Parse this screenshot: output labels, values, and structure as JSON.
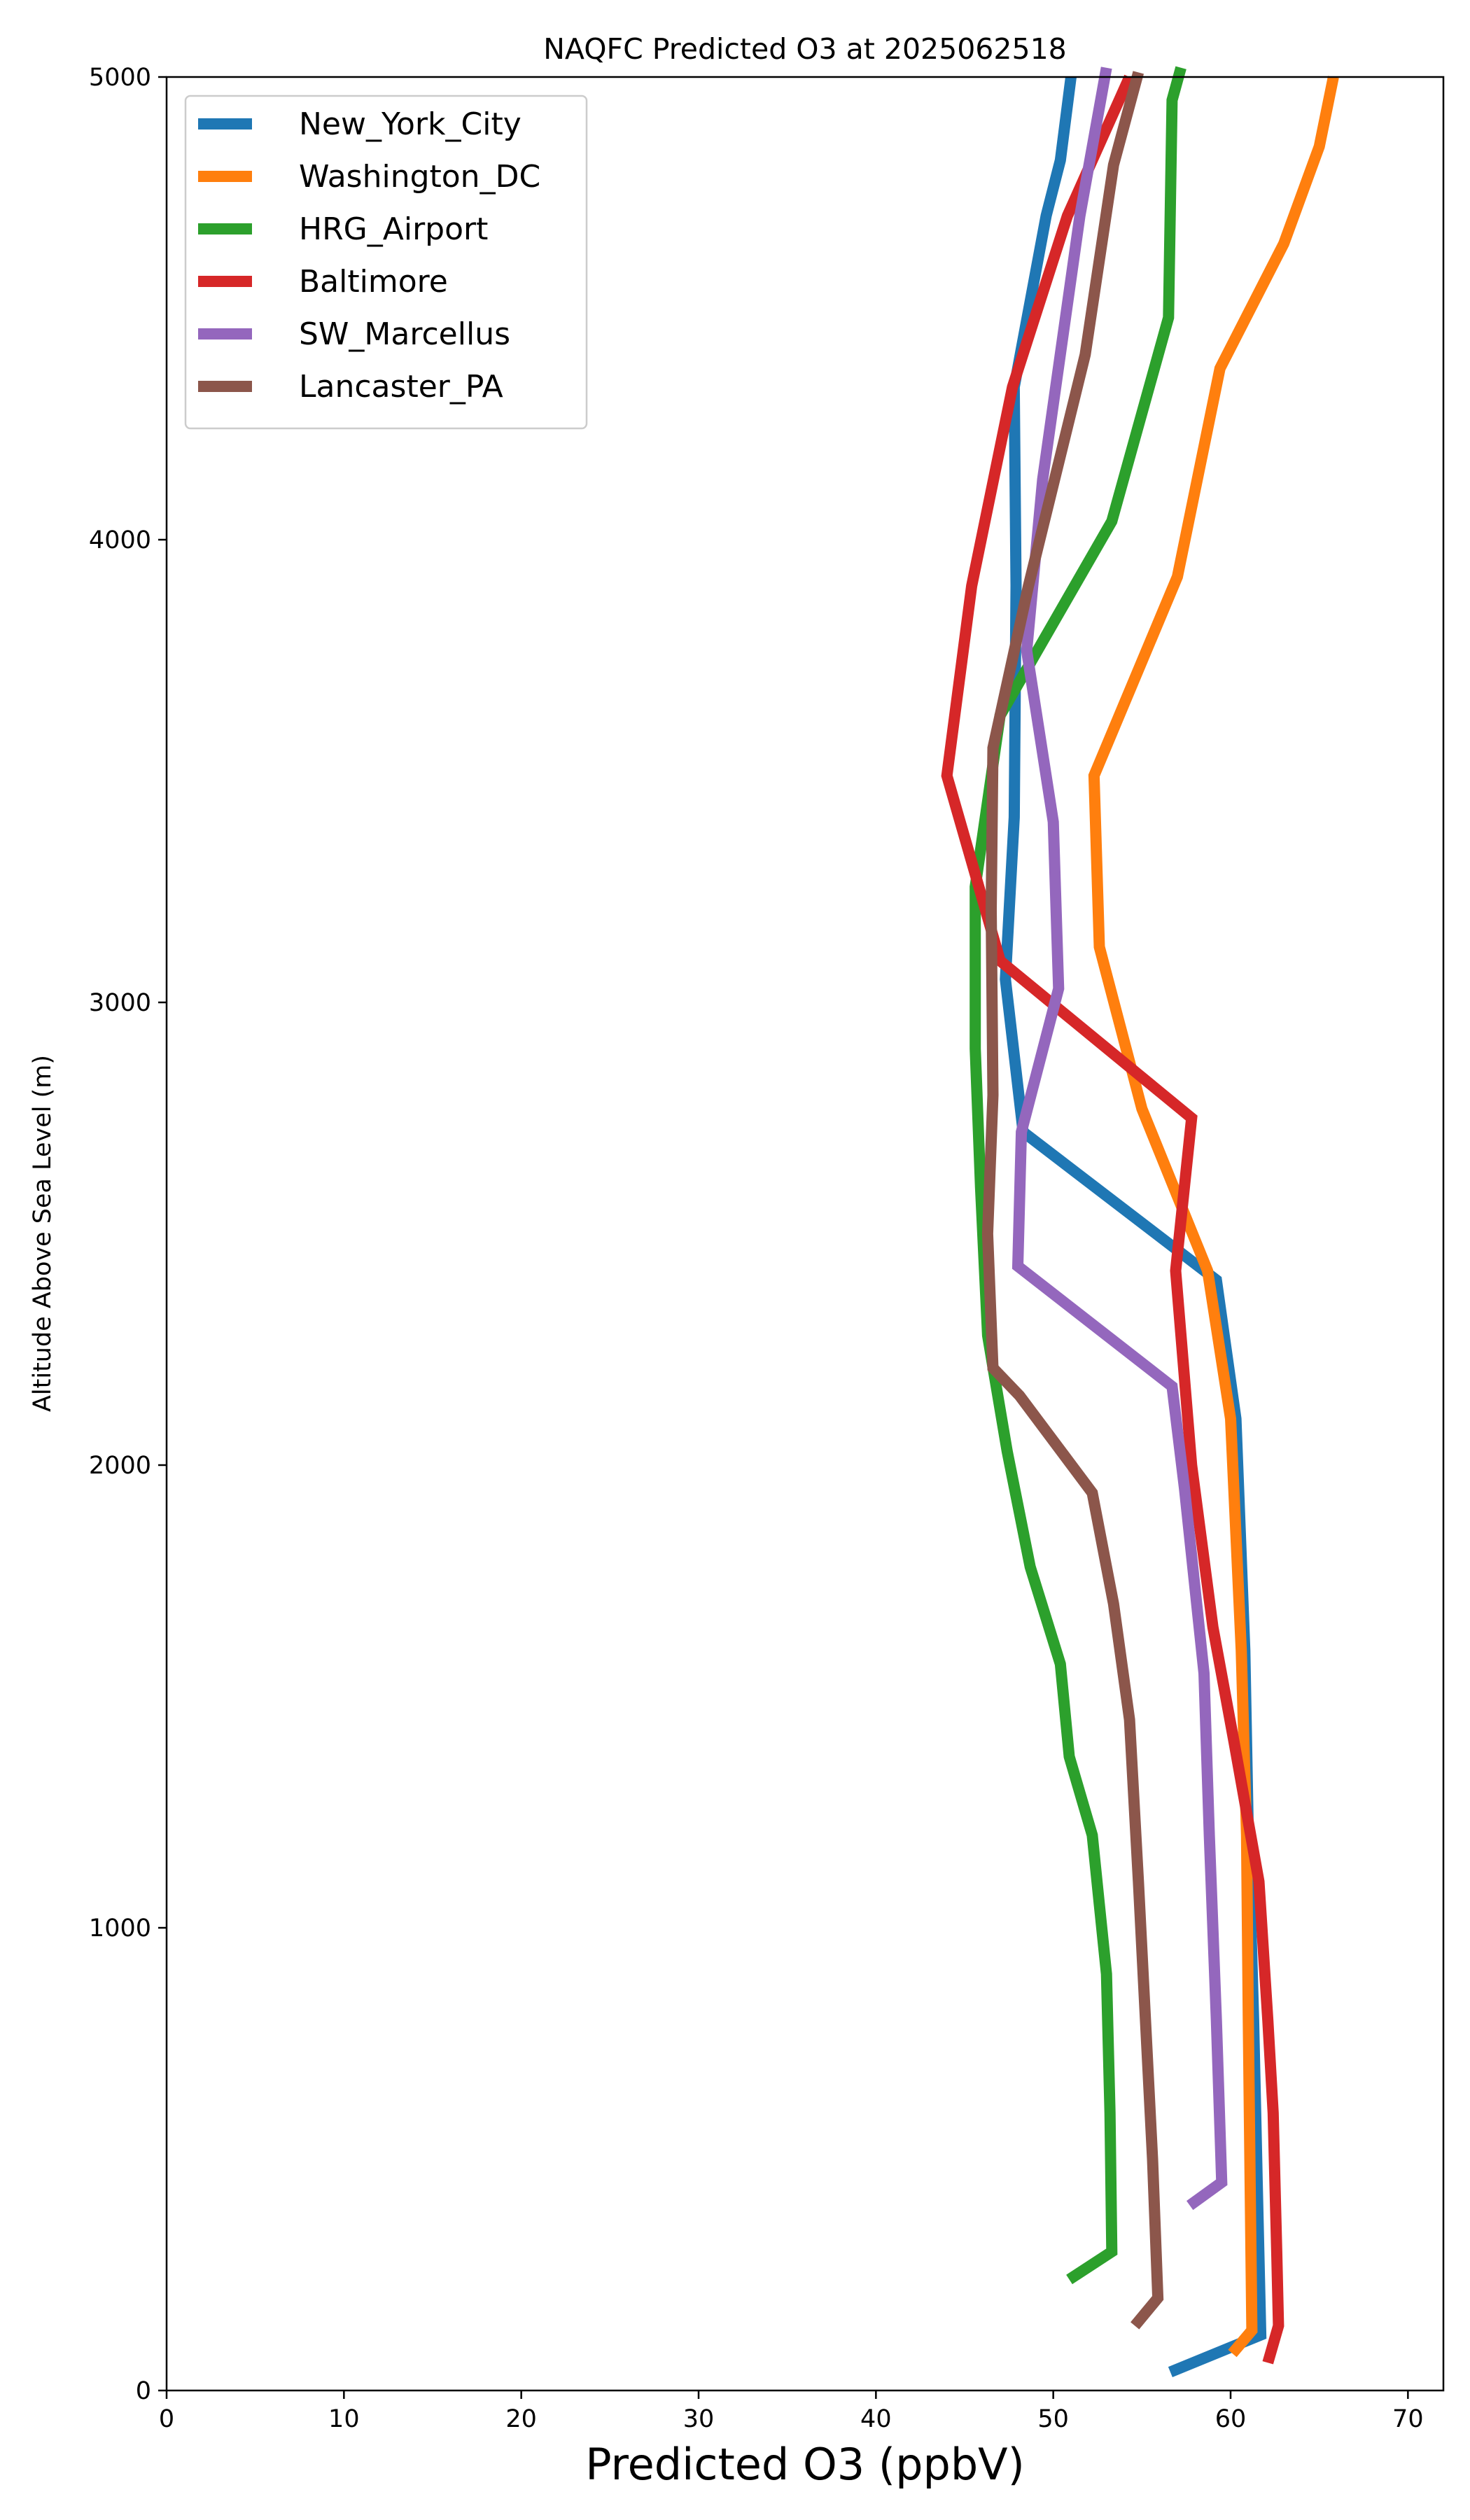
{
  "chart_data": {
    "type": "line",
    "title": "NAQFC Predicted O3 at 2025062518",
    "xlabel": "Predicted O3 (ppbV)",
    "ylabel": "Altitude Above Sea Level (m)",
    "xlim": [
      0,
      72
    ],
    "ylim": [
      0,
      5000
    ],
    "xticks": [
      0,
      10,
      20,
      30,
      40,
      50,
      60,
      70
    ],
    "yticks": [
      0,
      1000,
      2000,
      3000,
      4000,
      5000
    ],
    "legend": "upper-left",
    "grid": false,
    "series": [
      {
        "name": "New_York_City",
        "color": "#1f77b4",
        "points": [
          [
            56.6,
            40
          ],
          [
            61.7,
            120
          ],
          [
            61.5,
            450
          ],
          [
            61.3,
            800
          ],
          [
            61.0,
            1200
          ],
          [
            60.8,
            1600
          ],
          [
            60.3,
            2100
          ],
          [
            59.2,
            2400
          ],
          [
            48.3,
            2720
          ],
          [
            47.3,
            3050
          ],
          [
            47.8,
            3400
          ],
          [
            47.9,
            3900
          ],
          [
            47.8,
            4330
          ],
          [
            49.6,
            4700
          ],
          [
            50.4,
            4820
          ],
          [
            51.0,
            5000
          ]
        ]
      },
      {
        "name": "Washington_DC",
        "color": "#ff7f0e",
        "points": [
          [
            60.1,
            80
          ],
          [
            61.2,
            130
          ],
          [
            61.1,
            450
          ],
          [
            61.0,
            800
          ],
          [
            60.9,
            1200
          ],
          [
            60.6,
            1600
          ],
          [
            60.0,
            2100
          ],
          [
            58.7,
            2420
          ],
          [
            55.0,
            2770
          ],
          [
            52.6,
            3120
          ],
          [
            52.3,
            3490
          ],
          [
            57.0,
            3920
          ],
          [
            59.4,
            4370
          ],
          [
            63.0,
            4640
          ],
          [
            65.0,
            4850
          ],
          [
            65.8,
            5000
          ]
        ]
      },
      {
        "name": "HRG_Airport",
        "color": "#2ca02c",
        "points": [
          [
            50.9,
            240
          ],
          [
            53.3,
            300
          ],
          [
            53.2,
            600
          ],
          [
            53.0,
            900
          ],
          [
            52.6,
            1050
          ],
          [
            52.2,
            1200
          ],
          [
            50.9,
            1370
          ],
          [
            50.4,
            1570
          ],
          [
            48.7,
            1780
          ],
          [
            47.4,
            2030
          ],
          [
            46.3,
            2280
          ],
          [
            45.9,
            2600
          ],
          [
            45.6,
            2900
          ],
          [
            45.6,
            3250
          ],
          [
            47.0,
            3620
          ],
          [
            53.3,
            4040
          ],
          [
            56.5,
            4480
          ],
          [
            56.7,
            4950
          ],
          [
            57.2,
            5020
          ]
        ]
      },
      {
        "name": "Baltimore",
        "color": "#d62728",
        "points": [
          [
            62.1,
            60
          ],
          [
            62.7,
            140
          ],
          [
            62.6,
            300
          ],
          [
            62.4,
            600
          ],
          [
            62.1,
            800
          ],
          [
            61.6,
            1100
          ],
          [
            60.2,
            1400
          ],
          [
            59.0,
            1650
          ],
          [
            57.8,
            2000
          ],
          [
            56.9,
            2420
          ],
          [
            57.8,
            2750
          ],
          [
            47.0,
            3090
          ],
          [
            44.0,
            3490
          ],
          [
            45.4,
            3900
          ],
          [
            47.7,
            4330
          ],
          [
            50.8,
            4700
          ],
          [
            54.3,
            5000
          ]
        ]
      },
      {
        "name": "SW_Marcellus",
        "color": "#9467bd",
        "points": [
          [
            57.7,
            400
          ],
          [
            59.5,
            450
          ],
          [
            59.2,
            800
          ],
          [
            58.8,
            1200
          ],
          [
            58.5,
            1550
          ],
          [
            57.4,
            1950
          ],
          [
            56.7,
            2170
          ],
          [
            48.0,
            2430
          ],
          [
            48.2,
            2720
          ],
          [
            50.3,
            3030
          ],
          [
            50.0,
            3390
          ],
          [
            48.5,
            3760
          ],
          [
            49.4,
            4130
          ],
          [
            51.5,
            4700
          ],
          [
            53.0,
            5020
          ]
        ]
      },
      {
        "name": "Lancaster_PA",
        "color": "#8c564b",
        "points": [
          [
            54.6,
            140
          ],
          [
            55.9,
            200
          ],
          [
            55.6,
            500
          ],
          [
            55.2,
            800
          ],
          [
            54.8,
            1100
          ],
          [
            54.3,
            1450
          ],
          [
            53.4,
            1700
          ],
          [
            52.2,
            1940
          ],
          [
            48.1,
            2150
          ],
          [
            46.6,
            2210
          ],
          [
            46.3,
            2500
          ],
          [
            46.6,
            2800
          ],
          [
            46.5,
            3200
          ],
          [
            46.6,
            3550
          ],
          [
            48.6,
            3900
          ],
          [
            51.8,
            4400
          ],
          [
            53.4,
            4810
          ],
          [
            54.8,
            5010
          ]
        ]
      }
    ]
  }
}
